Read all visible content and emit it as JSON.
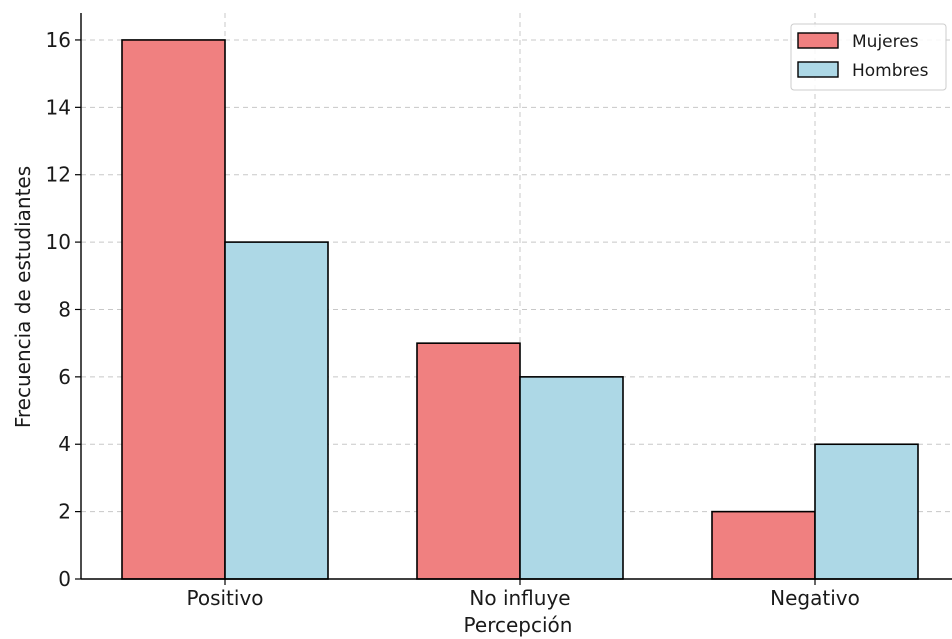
{
  "chart_data": {
    "type": "bar",
    "title": "",
    "xlabel": "Percepción",
    "ylabel": "Frecuencia de estudiantes",
    "categories": [
      "Positivo",
      "No influye",
      "Negativo"
    ],
    "series": [
      {
        "name": "Mujeres",
        "values": [
          16,
          7,
          2
        ],
        "color": "#f08080"
      },
      {
        "name": "Hombres",
        "values": [
          10,
          6,
          4
        ],
        "color": "#add8e6"
      }
    ],
    "ylim": [
      0,
      16.8
    ],
    "yticks": [
      0,
      2,
      4,
      6,
      8,
      10,
      12,
      14,
      16
    ],
    "grid": true,
    "legend_position": "top-right"
  }
}
